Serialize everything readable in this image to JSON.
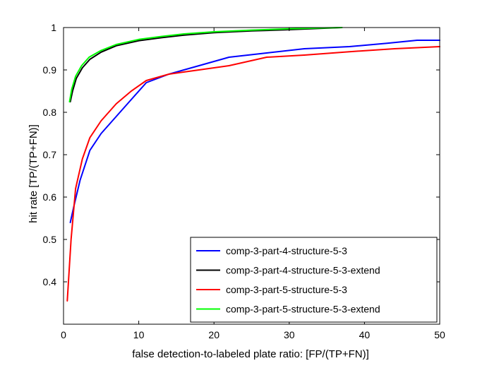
{
  "chart_data": {
    "type": "line",
    "title": "",
    "xlabel": "false detection-to-labeled plate ratio: [FP/(TP+FN)]",
    "ylabel": "hit rate [TP/(TP+FN)]",
    "xlim": [
      0,
      50
    ],
    "ylim": [
      0.3,
      1.0
    ],
    "xticks": [
      0,
      10,
      20,
      30,
      40,
      50
    ],
    "yticks": [
      0.4,
      0.5,
      0.6,
      0.7,
      0.8,
      0.9,
      1.0
    ],
    "xtick_labels": [
      "0",
      "10",
      "20",
      "30",
      "40",
      "50"
    ],
    "ytick_labels": [
      "0.4",
      "0.5",
      "0.6",
      "0.7",
      "0.8",
      "0.9",
      "1"
    ],
    "grid": false,
    "legend_position": "bottom-right",
    "series": [
      {
        "name": "comp-3-part-4-structure-5-3",
        "color": "#0000ff",
        "x": [
          0.9,
          1.4,
          2.2,
          3.5,
          5.0,
          7.0,
          9.0,
          11.0,
          14.0,
          18.0,
          22.0,
          27.0,
          32.0,
          38.0,
          43.0,
          47.0,
          50.0
        ],
        "y": [
          0.54,
          0.58,
          0.64,
          0.71,
          0.75,
          0.79,
          0.83,
          0.87,
          0.89,
          0.91,
          0.93,
          0.94,
          0.95,
          0.955,
          0.963,
          0.97,
          0.97
        ]
      },
      {
        "name": "comp-3-part-4-structure-5-3-extend",
        "color": "#000000",
        "x": [
          0.9,
          1.2,
          1.7,
          2.5,
          3.5,
          5.0,
          7.0,
          10.0,
          13.0,
          16.0,
          20.0,
          25.0,
          30.0,
          34.0,
          37.0
        ],
        "y": [
          0.825,
          0.85,
          0.88,
          0.905,
          0.925,
          0.942,
          0.957,
          0.969,
          0.976,
          0.982,
          0.988,
          0.992,
          0.995,
          0.998,
          1.0
        ]
      },
      {
        "name": "comp-3-part-5-structure-5-3",
        "color": "#ff0000",
        "x": [
          0.5,
          1.0,
          1.6,
          2.5,
          3.5,
          5.0,
          7.0,
          9.0,
          11.0,
          14.0,
          18.0,
          22.0,
          27.0,
          32.0,
          38.0,
          44.0,
          50.0
        ],
        "y": [
          0.355,
          0.5,
          0.62,
          0.69,
          0.74,
          0.78,
          0.82,
          0.85,
          0.875,
          0.89,
          0.9,
          0.91,
          0.93,
          0.935,
          0.943,
          0.95,
          0.955
        ]
      },
      {
        "name": "comp-3-part-5-structure-5-3-extend",
        "color": "#00ff00",
        "x": [
          0.8,
          1.1,
          1.6,
          2.4,
          3.4,
          5.0,
          7.0,
          10.0,
          13.0,
          16.0,
          20.0,
          25.0,
          30.0,
          34.0,
          37.0
        ],
        "y": [
          0.825,
          0.855,
          0.885,
          0.91,
          0.93,
          0.946,
          0.96,
          0.972,
          0.979,
          0.985,
          0.99,
          0.994,
          0.997,
          0.999,
          1.0
        ]
      }
    ]
  }
}
